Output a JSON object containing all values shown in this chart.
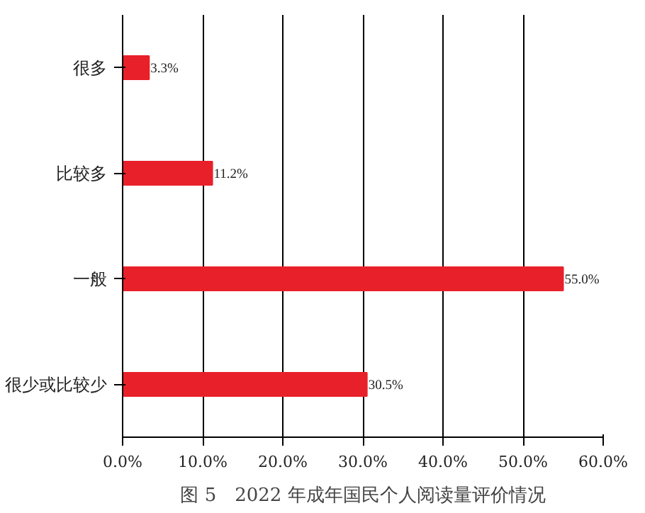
{
  "chart_data": {
    "type": "bar",
    "orientation": "horizontal",
    "title": "图 5　2022 年成年国民个人阅读量评价情况",
    "categories": [
      "很多",
      "比较多",
      "一般",
      "很少或比较少"
    ],
    "values": [
      3.3,
      11.2,
      55.0,
      30.5
    ],
    "value_labels": [
      "3.3%",
      "11.2%",
      "55.0%",
      "30.5%"
    ],
    "color": "#e8202a",
    "xlim": [
      0,
      60
    ],
    "xticks": [
      {
        "value": 0,
        "label": "0.0%"
      },
      {
        "value": 10,
        "label": "10.0%"
      },
      {
        "value": 20,
        "label": "20.0%"
      },
      {
        "value": 30,
        "label": "30.0%"
      },
      {
        "value": 40,
        "label": "40.0%"
      },
      {
        "value": 50,
        "label": "50.0%"
      },
      {
        "value": 60,
        "label": "60.0%"
      }
    ],
    "grid": "x"
  }
}
